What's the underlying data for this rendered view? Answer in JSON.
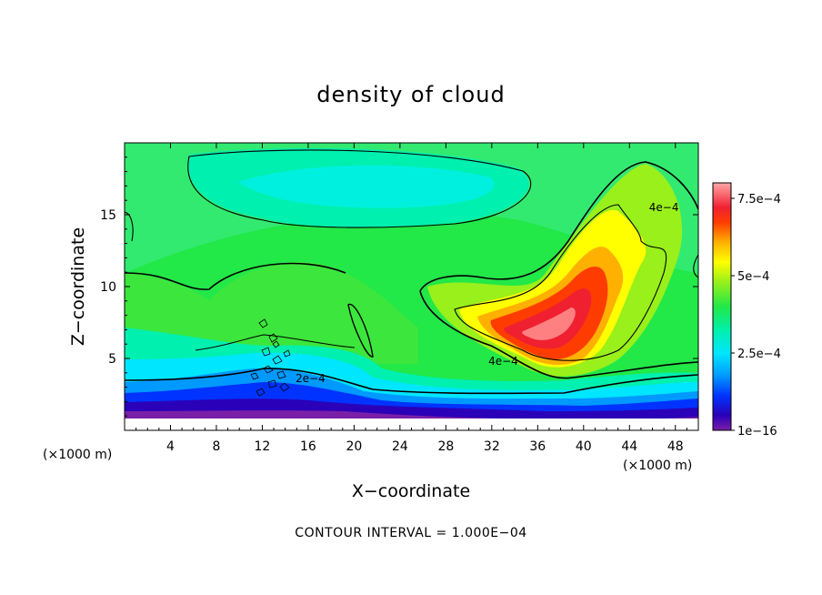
{
  "chart_data": {
    "type": "heatmap",
    "title": "density of cloud",
    "xlabel": "X−coordinate",
    "ylabel": "Z−coordinate",
    "x_unit_note": "(×1000 m)",
    "y_unit_note": "(×1000 m)",
    "xlim": [
      0,
      50
    ],
    "ylim": [
      0,
      20
    ],
    "x_ticks": [
      "4",
      "8",
      "12",
      "16",
      "20",
      "24",
      "28",
      "32",
      "36",
      "40",
      "44",
      "48"
    ],
    "x_tick_values": [
      4,
      8,
      12,
      16,
      20,
      24,
      28,
      32,
      36,
      40,
      44,
      48
    ],
    "y_ticks": [
      "5",
      "10",
      "15"
    ],
    "y_tick_values": [
      5,
      10,
      15
    ],
    "colorbar": {
      "min": 0,
      "max": 0.0008,
      "tick_labels": [
        "1e−16",
        "2.5e−4",
        "5e−4",
        "7.5e−4"
      ],
      "tick_values": [
        0,
        0.00025,
        0.0005,
        0.00075
      ]
    },
    "contour_labels": [
      {
        "text": "2e−4",
        "x": 16.2,
        "z": 3.6
      },
      {
        "text": "4e−4",
        "x": 33,
        "z": 4.8
      },
      {
        "text": "4e−4",
        "x": 47,
        "z": 15.5
      }
    ],
    "footnote": "CONTOUR INTERVAL = 1.000E−04",
    "grid": false,
    "legend": "colorbar-right"
  }
}
